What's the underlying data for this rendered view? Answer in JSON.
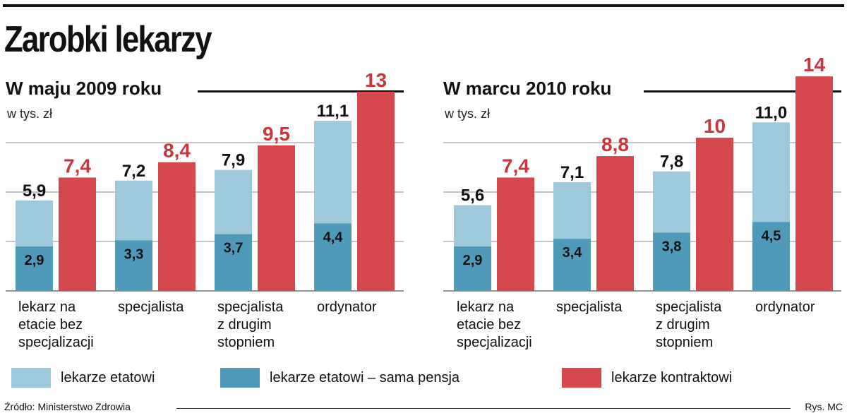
{
  "title": "Zarobki lekarzy",
  "colors": {
    "light": "#9ec9dc",
    "dark": "#4f9ab8",
    "red": "#d5484d",
    "red_label": "#c8373d",
    "grid": "#8c8c8c"
  },
  "legend": [
    {
      "label": "lekarze etatowi",
      "color": "#9ec9dc"
    },
    {
      "label": "lekarze etatowi – sama pensja",
      "color": "#4f9ab8"
    },
    {
      "label": "lekarze kontraktowi",
      "color": "#d5484d"
    }
  ],
  "source": "Źródło: Ministerstwo Zdrowia",
  "credit": "Rys. MC",
  "chart_data": [
    {
      "type": "bar",
      "title": "W maju 2009 roku",
      "unit": "w tys. zł",
      "categories": [
        [
          "lekarz na",
          "etacie bez",
          "specjalizacji"
        ],
        [
          "specjalista"
        ],
        [
          "specjalista",
          "z drugim",
          "stopniem"
        ],
        [
          "ordynator"
        ]
      ],
      "series": [
        {
          "name": "lekarze etatowi",
          "values": [
            5.9,
            7.2,
            7.9,
            11.1
          ],
          "labels": [
            "5,9",
            "7,2",
            "7,9",
            "11,1"
          ]
        },
        {
          "name": "lekarze etatowi – sama pensja",
          "values": [
            2.9,
            3.3,
            3.7,
            4.4
          ],
          "labels": [
            "2,9",
            "3,3",
            "3,7",
            "4,4"
          ]
        },
        {
          "name": "lekarze kontraktowi",
          "values": [
            7.4,
            8.4,
            9.5,
            13
          ],
          "labels": [
            "7,4",
            "8,4",
            "9,5",
            "13"
          ]
        }
      ],
      "ylim": [
        0,
        14
      ]
    },
    {
      "type": "bar",
      "title": "W marcu 2010 roku",
      "unit": "w tys. zł",
      "categories": [
        [
          "lekarz na",
          "etacie bez",
          "specjalizacji"
        ],
        [
          "specjalista"
        ],
        [
          "specjalista",
          "z drugim",
          "stopniem"
        ],
        [
          "ordynator"
        ]
      ],
      "series": [
        {
          "name": "lekarze etatowi",
          "values": [
            5.6,
            7.1,
            7.8,
            11.0
          ],
          "labels": [
            "5,6",
            "7,1",
            "7,8",
            "11,0"
          ]
        },
        {
          "name": "lekarze etatowi – sama pensja",
          "values": [
            2.9,
            3.4,
            3.8,
            4.5
          ],
          "labels": [
            "2,9",
            "3,4",
            "3,8",
            "4,5"
          ]
        },
        {
          "name": "lekarze kontraktowi",
          "values": [
            7.4,
            8.8,
            10,
            14
          ],
          "labels": [
            "7,4",
            "8,8",
            "10",
            "14"
          ]
        }
      ],
      "ylim": [
        0,
        14
      ]
    }
  ]
}
